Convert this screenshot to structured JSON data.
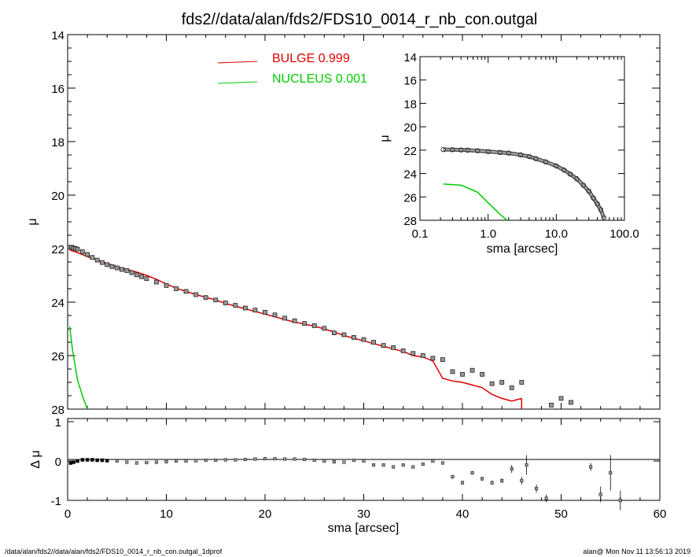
{
  "chart_data": [
    {
      "panel": "main",
      "type": "scatter",
      "title": "fds2//data/alan/fds2/FDS10_0014_r_nb_con.outgal",
      "xlabel": "",
      "ylabel": "μ",
      "xlim": [
        0,
        60
      ],
      "ylim": [
        28,
        14
      ],
      "y_inverted": true,
      "x_ticks": [
        0,
        10,
        20,
        30,
        40,
        50,
        60
      ],
      "x_tick_labels": [
        "",
        "",
        "",
        "",
        "",
        "",
        ""
      ],
      "y_ticks": [
        14,
        16,
        18,
        20,
        22,
        24,
        26,
        28
      ],
      "y_tick_labels": [
        "14",
        "16",
        "18",
        "20",
        "22",
        "24",
        "26",
        "28"
      ],
      "legend": [
        {
          "name": "BULGE  0.999",
          "color": "#e00000"
        },
        {
          "name": "NUCLEUS  0.001",
          "color": "#00cc00"
        }
      ],
      "legend_position": "top-center",
      "grid": false,
      "series": [
        {
          "name": "data",
          "style": "boxed points",
          "x": [
            0.2,
            0.4,
            0.6,
            0.8,
            1.0,
            1.5,
            2.0,
            2.5,
            3.0,
            3.5,
            4.0,
            4.5,
            5.0,
            5.5,
            6.0,
            6.5,
            7.0,
            7.5,
            8.0,
            9.0,
            10.0,
            11.0,
            12.0,
            13.0,
            14.0,
            15.0,
            16.0,
            17.0,
            18.0,
            19.0,
            20.0,
            21.0,
            22.0,
            23.0,
            24.0,
            25.0,
            26.0,
            27.0,
            28.0,
            29.0,
            30.0,
            31.0,
            32.0,
            33.0,
            34.0,
            35.0,
            36.0,
            37.0,
            38.0,
            39.0,
            40.0,
            41.0,
            42.0,
            43.0,
            44.0,
            45.0,
            46.0,
            49.0,
            50.0,
            51.0
          ],
          "y": [
            21.95,
            21.95,
            21.98,
            22.0,
            22.02,
            22.12,
            22.22,
            22.33,
            22.43,
            22.52,
            22.6,
            22.67,
            22.72,
            22.78,
            22.82,
            22.9,
            22.98,
            23.05,
            23.12,
            23.25,
            23.38,
            23.5,
            23.6,
            23.72,
            23.83,
            23.92,
            24.03,
            24.12,
            24.22,
            24.3,
            24.38,
            24.48,
            24.6,
            24.7,
            24.8,
            24.88,
            24.98,
            25.15,
            25.22,
            25.32,
            25.4,
            25.5,
            25.62,
            25.7,
            25.82,
            25.92,
            26.0,
            26.1,
            26.15,
            26.6,
            26.7,
            26.55,
            26.7,
            27.05,
            27.0,
            27.2,
            27.0,
            27.85,
            27.6,
            27.75
          ]
        },
        {
          "name": "BULGE  0.999",
          "style": "line",
          "color": "#e00000",
          "x": [
            0.2,
            1,
            2,
            3,
            4,
            5,
            6,
            7,
            8,
            9,
            10,
            11,
            12,
            13,
            14,
            15,
            16,
            17,
            18,
            19,
            20,
            21,
            22,
            23,
            24,
            25,
            26,
            27,
            28,
            29,
            30,
            31,
            32,
            33,
            34,
            35,
            36,
            37,
            38,
            39,
            40,
            41,
            42,
            43,
            44,
            45,
            46
          ],
          "y": [
            22.05,
            22.15,
            22.3,
            22.43,
            22.55,
            22.67,
            22.78,
            22.88,
            23.0,
            23.15,
            23.32,
            23.48,
            23.6,
            23.72,
            23.82,
            23.92,
            24.05,
            24.15,
            24.25,
            24.35,
            24.45,
            24.55,
            24.65,
            24.75,
            24.82,
            24.9,
            25.0,
            25.12,
            25.25,
            25.35,
            25.45,
            25.55,
            25.65,
            25.75,
            25.85,
            26.0,
            26.05,
            26.2,
            26.85,
            26.95,
            27.0,
            27.1,
            27.2,
            27.45,
            27.6,
            27.7,
            27.6
          ]
        },
        {
          "name": "NUCLEUS  0.001",
          "style": "line",
          "color": "#00cc00",
          "x": [
            0.2,
            0.5,
            1.0,
            1.5,
            2.0
          ],
          "y": [
            24.9,
            25.8,
            26.9,
            27.5,
            28.0
          ]
        }
      ]
    },
    {
      "panel": "inset",
      "type": "scatter",
      "title": "",
      "xlabel": "sma [arcsec]",
      "ylabel": "μ",
      "x_scale": "log",
      "xlim": [
        0.1,
        100
      ],
      "ylim": [
        28,
        14
      ],
      "y_inverted": true,
      "x_ticks": [
        0.1,
        1,
        10,
        100
      ],
      "x_tick_labels": [
        "0.1",
        "1.0",
        "10.0",
        "100.0"
      ],
      "y_ticks": [
        14,
        16,
        18,
        20,
        22,
        24,
        26,
        28
      ],
      "y_tick_labels": [
        "14",
        "16",
        "18",
        "20",
        "22",
        "24",
        "26",
        "28"
      ],
      "series": [
        {
          "name": "data",
          "style": "circles",
          "x": [
            0.22,
            0.3,
            0.4,
            0.5,
            0.7,
            1.0,
            1.5,
            2.0,
            3.0,
            4.0,
            5.0,
            7.0,
            10.0,
            13.0,
            16.0,
            20.0,
            25.0,
            30.0,
            35.0,
            40.0,
            45.0,
            50.0
          ],
          "y": [
            21.95,
            21.96,
            21.98,
            22.0,
            22.05,
            22.12,
            22.2,
            22.25,
            22.4,
            22.55,
            22.72,
            23.0,
            23.35,
            23.7,
            24.05,
            24.45,
            25.0,
            25.5,
            26.1,
            26.6,
            27.1,
            27.8
          ]
        },
        {
          "name": "NUCLEUS",
          "style": "line",
          "color": "#00cc00",
          "x": [
            0.22,
            0.4,
            0.7,
            1.0,
            1.5,
            1.9
          ],
          "y": [
            24.9,
            25.0,
            25.6,
            26.5,
            27.5,
            28.0
          ]
        }
      ]
    },
    {
      "panel": "residual",
      "type": "scatter",
      "xlabel": "sma [arcsec]",
      "ylabel": "Δ μ",
      "xlim": [
        0,
        60
      ],
      "ylim": [
        -1,
        1
      ],
      "x_ticks": [
        0,
        10,
        20,
        30,
        40,
        50,
        60
      ],
      "x_tick_labels": [
        "0",
        "10",
        "20",
        "30",
        "40",
        "50",
        "60"
      ],
      "y_ticks": [
        -1,
        0,
        1
      ],
      "y_tick_labels": [
        "-1",
        "0",
        "1"
      ],
      "series": [
        {
          "name": "residual",
          "x": [
            0.3,
            0.6,
            1,
            1.5,
            2,
            2.5,
            3,
            3.5,
            4,
            5,
            6,
            7,
            8,
            9,
            10,
            11,
            12,
            13,
            14,
            15,
            16,
            17,
            18,
            19,
            20,
            21,
            22,
            23,
            24,
            25,
            26,
            27,
            28,
            29,
            30,
            31,
            32,
            33,
            34,
            35,
            36,
            37,
            38,
            39,
            40,
            41,
            42,
            43,
            44,
            45,
            46,
            46.5,
            47.5,
            48.5,
            53,
            54,
            55,
            56
          ],
          "y": [
            -0.05,
            -0.03,
            0.0,
            0.03,
            0.03,
            0.03,
            0.02,
            0.02,
            0.01,
            0.0,
            -0.03,
            -0.05,
            -0.04,
            -0.03,
            -0.02,
            0.0,
            0.0,
            0.01,
            0.02,
            0.02,
            0.03,
            0.03,
            0.04,
            0.05,
            0.06,
            0.06,
            0.05,
            0.05,
            0.04,
            0.02,
            0.0,
            -0.02,
            -0.03,
            0.02,
            0.0,
            -0.1,
            -0.1,
            -0.15,
            -0.1,
            -0.15,
            -0.08,
            0.0,
            -0.05,
            -0.4,
            -0.55,
            -0.3,
            -0.45,
            -0.55,
            -0.5,
            -0.2,
            -0.5,
            -0.1,
            -0.7,
            -0.95,
            -0.15,
            -0.85,
            -0.3,
            -1.0
          ],
          "err": [
            0,
            0,
            0,
            0,
            0,
            0,
            0,
            0,
            0,
            0,
            0,
            0,
            0,
            0,
            0,
            0,
            0,
            0,
            0,
            0,
            0,
            0,
            0,
            0,
            0,
            0,
            0,
            0,
            0,
            0,
            0,
            0,
            0,
            0,
            0,
            0,
            0,
            0,
            0,
            0,
            0,
            0,
            0,
            0.05,
            0.05,
            0.05,
            0.05,
            0.05,
            0.06,
            0.1,
            0.1,
            0.25,
            0.1,
            0.1,
            0.1,
            0.2,
            0.45,
            0.25
          ]
        }
      ]
    }
  ],
  "footer": {
    "left": "/data/alan/fds2//data/alan/fds2/FDS10_0014_r_nb_con.outgal_1dprof",
    "right": "alan@  Mon Nov 11 13:56:13 2019"
  }
}
